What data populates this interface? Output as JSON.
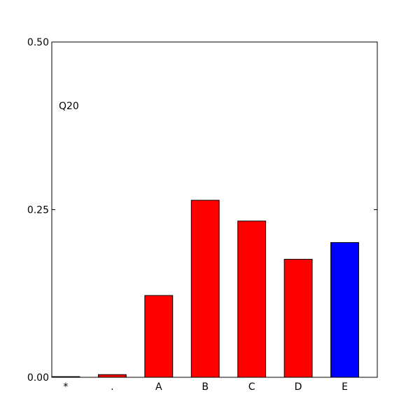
{
  "chart_data": {
    "type": "bar",
    "annotation": "Q20",
    "categories": [
      "*",
      ".",
      "A",
      "B",
      "C",
      "D",
      "E"
    ],
    "values": [
      0.001,
      0.004,
      0.122,
      0.264,
      0.233,
      0.176,
      0.201
    ],
    "colors": [
      "#ff0000",
      "#ff0000",
      "#ff0000",
      "#ff0000",
      "#ff0000",
      "#ff0000",
      "#0000ff"
    ],
    "ylim": [
      0,
      0.5
    ],
    "yticks": [
      {
        "value": 0,
        "label": "0.00"
      },
      {
        "value": 0.25,
        "label": "0.25"
      },
      {
        "value": 0.5,
        "label": "0.50"
      }
    ]
  }
}
